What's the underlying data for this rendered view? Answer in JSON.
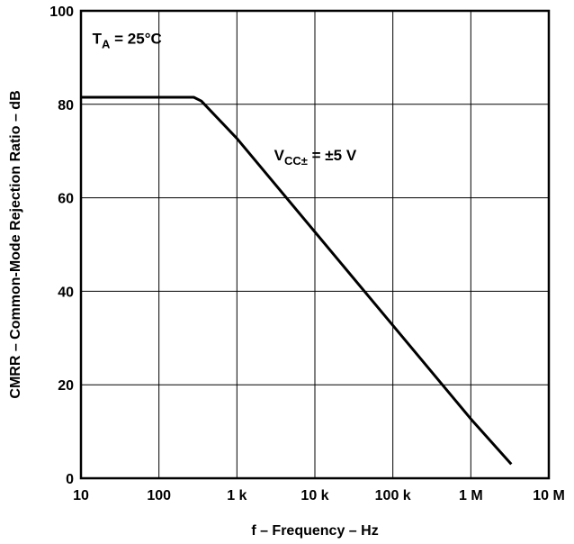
{
  "chart_data": {
    "type": "line",
    "title": "",
    "xlabel": "f – Frequency – Hz",
    "ylabel": "CMRR – Common-Mode Rejection Ratio – dB",
    "xscale": "log",
    "xlim": [
      10,
      10000000
    ],
    "ylim": [
      0,
      100
    ],
    "grid": true,
    "xticks": [
      10,
      100,
      1000,
      10000,
      100000,
      1000000,
      10000000
    ],
    "xtick_labels": [
      "10",
      "100",
      "1 k",
      "10 k",
      "100 k",
      "1 M",
      "10 M"
    ],
    "yticks": [
      0,
      20,
      40,
      60,
      80,
      100
    ],
    "ytick_labels": [
      "0",
      "20",
      "40",
      "60",
      "80",
      "100"
    ],
    "series": [
      {
        "color": "#000000",
        "x": [
          10,
          100,
          280,
          350,
          1000,
          10000,
          100000,
          1000000,
          3300000
        ],
        "y": [
          81.5,
          81.5,
          81.5,
          80.7,
          72.7,
          52.7,
          32.7,
          12.7,
          3.0
        ]
      }
    ],
    "annotations": {
      "ta": {
        "main": "T",
        "sub": "A",
        "rest": " = 25°C",
        "x": 14,
        "y": 93
      },
      "vcc": {
        "main": "V",
        "sub": "CC±",
        "rest": " = ±5 V",
        "x": 3000,
        "y": 68
      }
    }
  }
}
